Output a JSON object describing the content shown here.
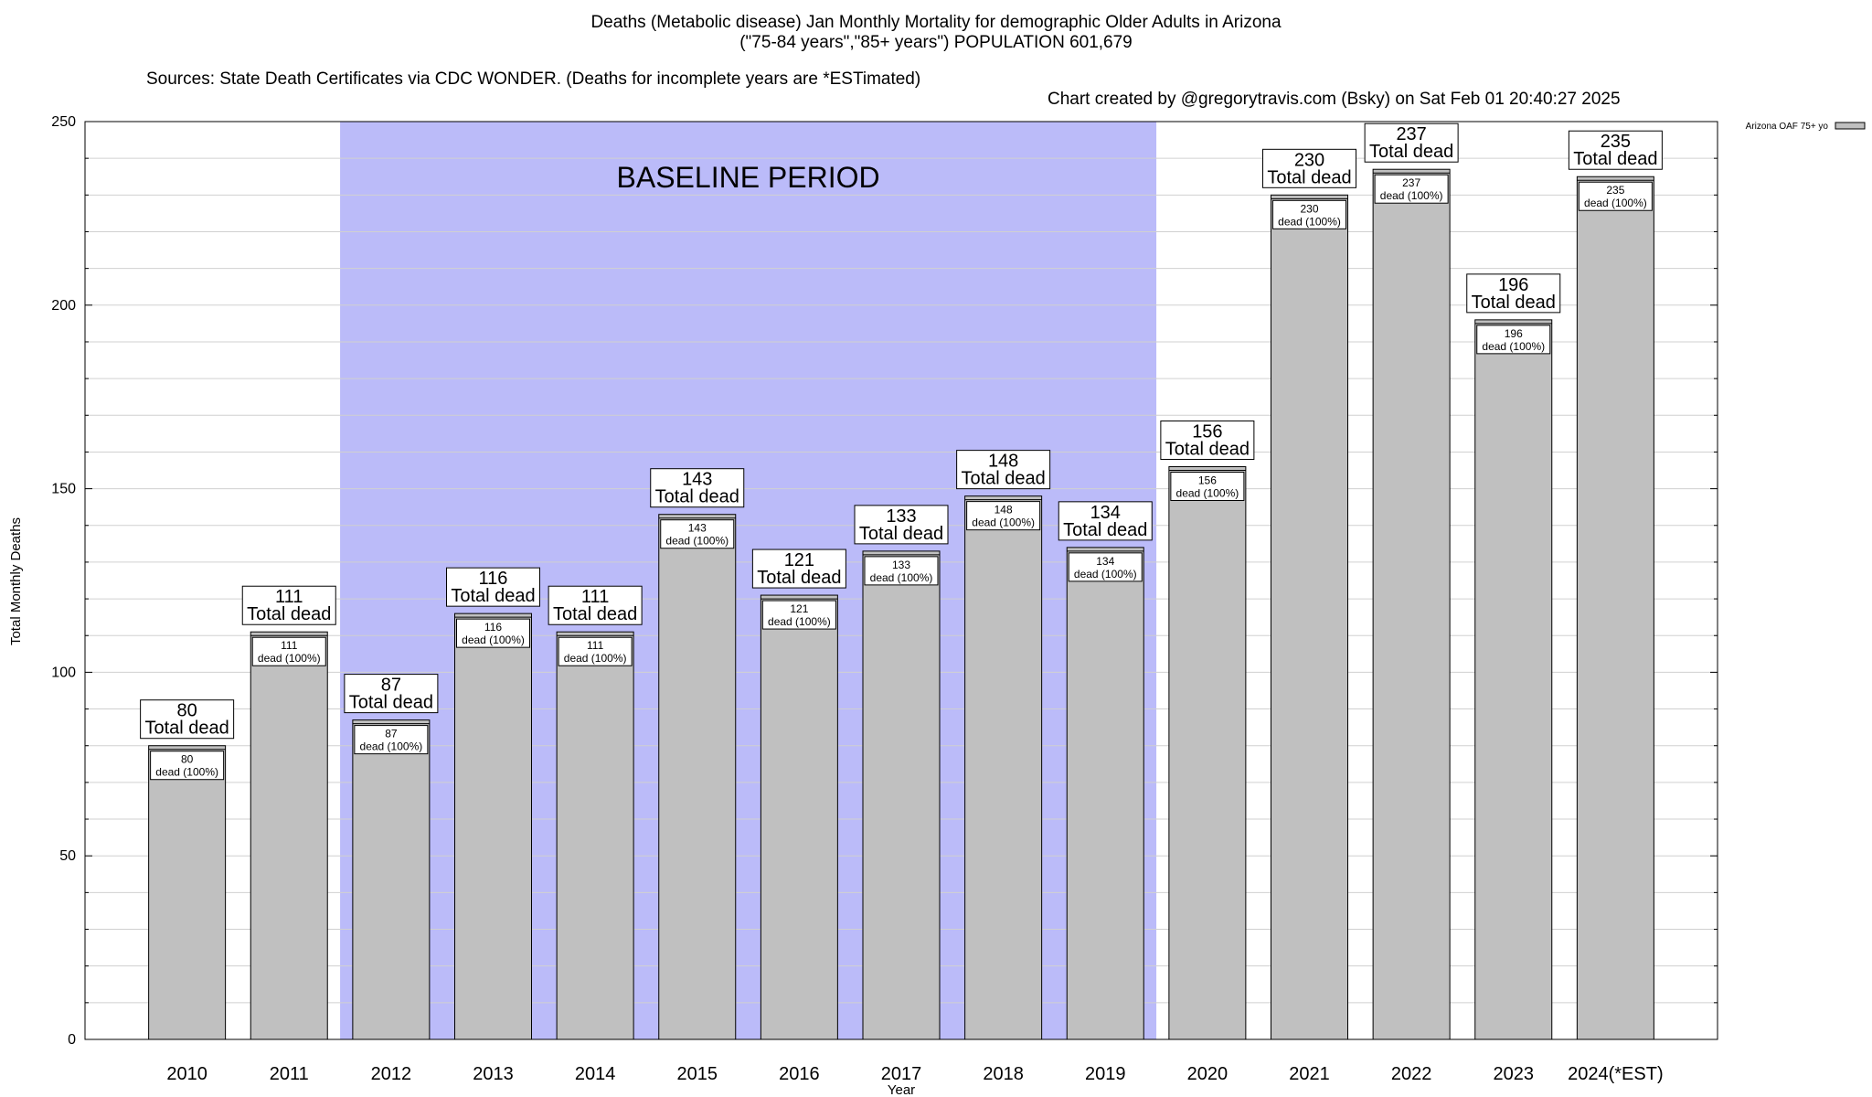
{
  "title": {
    "line1": "Deaths (Metabolic disease) Jan Monthly Mortality for demographic Older Adults in Arizona",
    "line2": "(\"75-84 years\",\"85+ years\") POPULATION 601,679",
    "sources": "Sources: State Death Certificates via CDC WONDER. (Deaths for incomplete years are *ESTimated)",
    "credit": "Chart created by @gregorytravis.com (Bsky) on Sat Feb 01 20:40:27 2025"
  },
  "colors": {
    "bar": "#c0c0c0",
    "baseline_band": "#bbbbf9",
    "grid": "#d0d0d0"
  },
  "chart_data": {
    "type": "bar",
    "categories": [
      "2010",
      "2011",
      "2012",
      "2013",
      "2014",
      "2015",
      "2016",
      "2017",
      "2018",
      "2019",
      "2020",
      "2021",
      "2022",
      "2023",
      "2024(*EST)"
    ],
    "series": [
      {
        "name": "Arizona OAF 75+ yo",
        "values": [
          80,
          111,
          87,
          116,
          111,
          143,
          121,
          133,
          148,
          134,
          156,
          230,
          237,
          196,
          235
        ]
      }
    ],
    "bar_label_suffix": "Total dead",
    "inner_label_suffix": "dead (100%)",
    "xlabel": "Year",
    "ylabel": "Total Monthly Deaths",
    "ylim": [
      0,
      250
    ],
    "yticks": [
      0,
      50,
      100,
      150,
      200,
      250
    ],
    "minor_step": 10,
    "grid": true,
    "legend_position": "top-right",
    "annotation": {
      "text": "BASELINE PERIOD",
      "from_category": "2012",
      "to_category": "2019"
    }
  }
}
